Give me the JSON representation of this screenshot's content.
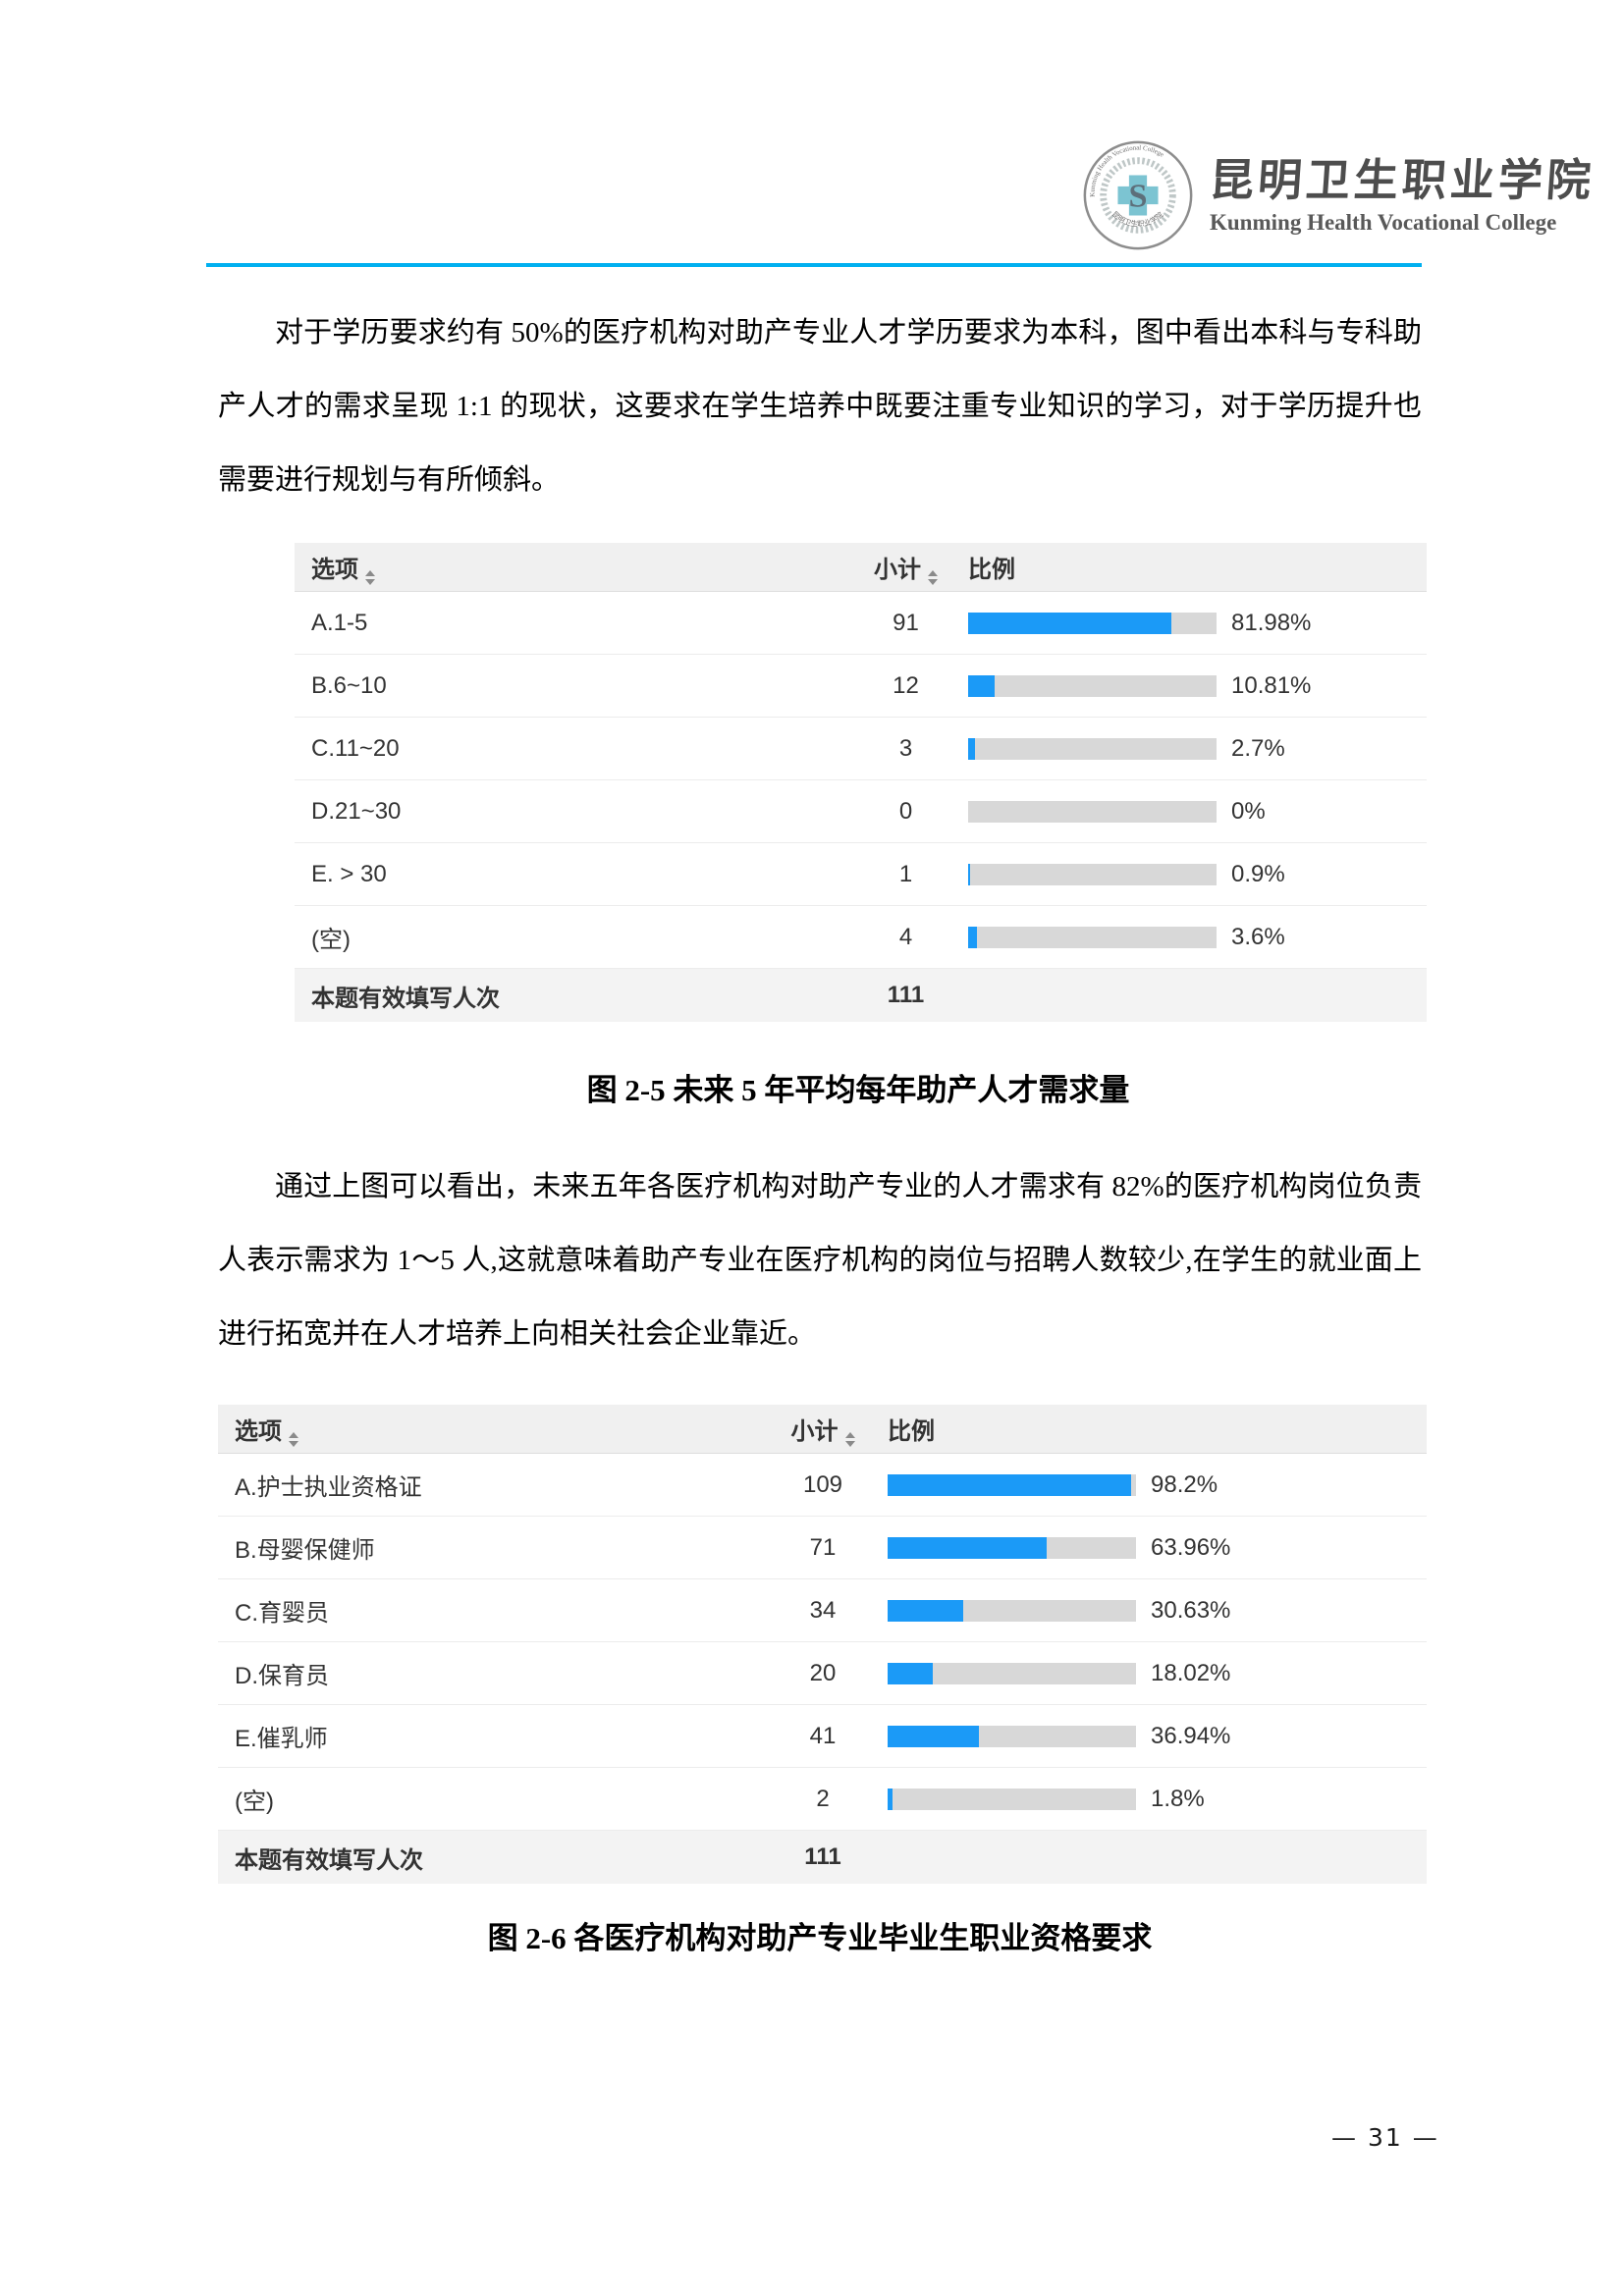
{
  "header": {
    "college_name_zh": "昆明卫生职业学院",
    "college_name_en": "Kunming Health Vocational College",
    "seal": {
      "icon": "college-seal-logo",
      "ring_text_en": "Kunming Health Vocational College",
      "ring_text_zh": "昆明卫生职业学院",
      "center_letter": "S"
    }
  },
  "colors": {
    "accent": "#00b0f0",
    "bar_fill": "#1b9af7",
    "bar_track": "#d8d8d8",
    "table_header_bg": "#f0f0f0",
    "table_footer_bg": "#f3f3f3"
  },
  "icons": {
    "sort": "sort-arrows-icon"
  },
  "paragraphs": [
    "对于学历要求约有 50%的医疗机构对助产专业人才学历要求为本科，图中看出本科与专科助产人才的需求呈现 1:1 的现状，这要求在学生培养中既要注重专业知识的学习，对于学历提升也需要进行规划与有所倾斜。",
    "通过上图可以看出，未来五年各医疗机构对助产专业的人才需求有 82%的医疗机构岗位负责人表示需求为 1～5 人,这就意味着助产专业在医疗机构的岗位与招聘人数较少,在学生的就业面上进行拓宽并在人才培养上向相关社会企业靠近。"
  ],
  "chart_data": [
    {
      "type": "table",
      "title": "图 2-5 未来 5 年平均每年助产人才需求量",
      "columns": [
        {
          "label": "选项",
          "sortable": true
        },
        {
          "label": "小计",
          "sortable": true
        },
        {
          "label": "比例",
          "sortable": false
        }
      ],
      "rows": [
        {
          "option": "A.1-5",
          "count": 91,
          "percent": 81.98,
          "percent_label": "81.98%"
        },
        {
          "option": "B.6~10",
          "count": 12,
          "percent": 10.81,
          "percent_label": "10.81%"
        },
        {
          "option": "C.11~20",
          "count": 3,
          "percent": 2.7,
          "percent_label": "2.7%"
        },
        {
          "option": "D.21~30",
          "count": 0,
          "percent": 0,
          "percent_label": "0%"
        },
        {
          "option": "E. > 30",
          "count": 1,
          "percent": 0.9,
          "percent_label": "0.9%"
        },
        {
          "option": "(空)",
          "count": 4,
          "percent": 3.6,
          "percent_label": "3.6%"
        }
      ],
      "footer": {
        "label": "本题有效填写人次",
        "count": 111
      }
    },
    {
      "type": "table",
      "title": "图 2-6 各医疗机构对助产专业毕业生职业资格要求",
      "columns": [
        {
          "label": "选项",
          "sortable": true
        },
        {
          "label": "小计",
          "sortable": true
        },
        {
          "label": "比例",
          "sortable": false
        }
      ],
      "rows": [
        {
          "option": "A.护士执业资格证",
          "count": 109,
          "percent": 98.2,
          "percent_label": "98.2%"
        },
        {
          "option": "B.母婴保健师",
          "count": 71,
          "percent": 63.96,
          "percent_label": "63.96%"
        },
        {
          "option": "C.育婴员",
          "count": 34,
          "percent": 30.63,
          "percent_label": "30.63%"
        },
        {
          "option": "D.保育员",
          "count": 20,
          "percent": 18.02,
          "percent_label": "18.02%"
        },
        {
          "option": "E.催乳师",
          "count": 41,
          "percent": 36.94,
          "percent_label": "36.94%"
        },
        {
          "option": "(空)",
          "count": 2,
          "percent": 1.8,
          "percent_label": "1.8%"
        }
      ],
      "footer": {
        "label": "本题有效填写人次",
        "count": 111
      }
    }
  ],
  "page": {
    "number_label": "— 31 —"
  }
}
